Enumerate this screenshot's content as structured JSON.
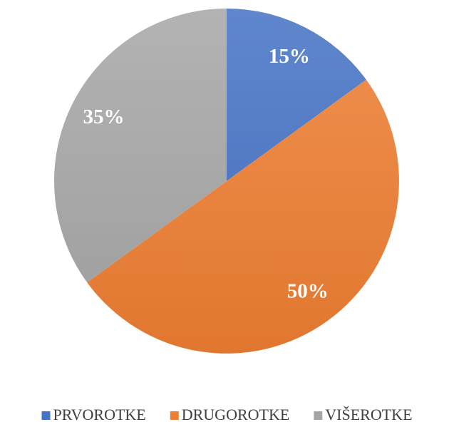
{
  "chart_data": {
    "type": "pie",
    "categories": [
      "PRVOROTKE",
      "DRUGOROTKE",
      "VIŠEROTKE"
    ],
    "values": [
      15,
      50,
      35
    ],
    "value_labels": [
      "15%",
      "50%",
      "35%"
    ],
    "colors": [
      "#4472c4",
      "#ed7d31",
      "#a5a5a5"
    ],
    "legend": "bottom"
  }
}
